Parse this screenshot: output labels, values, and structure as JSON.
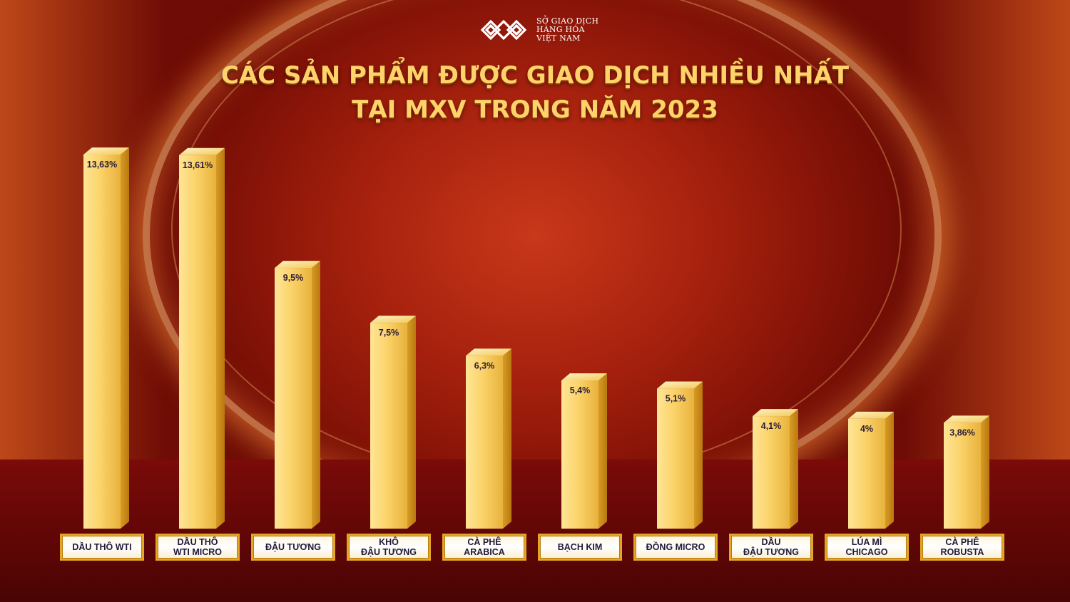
{
  "logo": {
    "line1": "SỞ GIAO DỊCH",
    "line2": "HÀNG HÓA",
    "line3": "VIỆT NAM",
    "tm": "™"
  },
  "title": {
    "line1": "CÁC SẢN PHẨM ĐƯỢC GIAO DỊCH NHIỀU NHẤT",
    "line2": "TẠI MXV TRONG NĂM 2023"
  },
  "colors": {
    "background": "#a8220e",
    "title": "#ffd36a",
    "bar": "#f7c74e",
    "label_border": "#e5a623"
  },
  "chart_data": {
    "type": "bar",
    "categories": [
      "DẦU THÔ WTI",
      "DẦU THÔ\nWTI MICRO",
      "ĐẬU TƯƠNG",
      "KHÔ\nĐẬU TƯƠNG",
      "CÀ PHÊ\nARABICA",
      "BẠCH KIM",
      "ĐỒNG MICRO",
      "DẦU\nĐẬU TƯƠNG",
      "LÚA MÌ\nCHICAGO",
      "CÀ PHÊ\nROBUSTA"
    ],
    "values": [
      13.63,
      13.61,
      9.5,
      7.5,
      6.3,
      5.4,
      5.1,
      4.1,
      4.0,
      3.86
    ],
    "value_labels": [
      "13,63%",
      "13,61%",
      "9,5%",
      "7,5%",
      "6,3%",
      "5,4%",
      "5,1%",
      "4,1%",
      "4%",
      "3,86%"
    ],
    "title": "CÁC SẢN PHẨM ĐƯỢC GIAO DỊCH NHIỀU NHẤT TẠI MXV TRONG NĂM 2023",
    "xlabel": "",
    "ylabel": "",
    "ylim": [
      0,
      13.63
    ],
    "grid": false,
    "legend": "none"
  }
}
